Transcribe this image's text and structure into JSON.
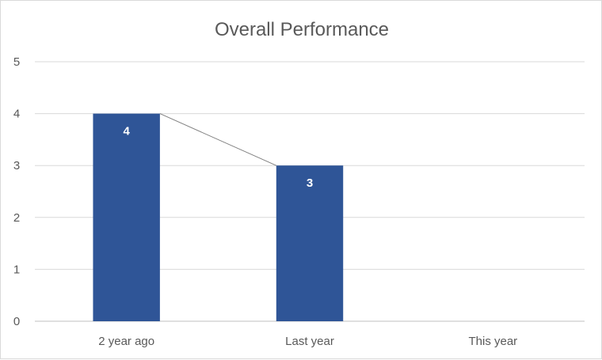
{
  "chart_data": {
    "type": "bar",
    "title": "Overall Performance",
    "categories": [
      "2 year ago",
      "Last year",
      "This year"
    ],
    "values": [
      4,
      3,
      null
    ],
    "data_labels": [
      "4",
      "3",
      ""
    ],
    "xlabel": "",
    "ylabel": "",
    "ylim": [
      0,
      5
    ],
    "yticks": [
      "0",
      "1",
      "2",
      "3",
      "4",
      "5"
    ],
    "grid": true,
    "legend": "none",
    "series_line_connecting_bar_tops": true,
    "colors": {
      "bar": "#2F5597",
      "grid": "#d9d9d9",
      "axis": "#bfbfbf",
      "connector": "#808080",
      "text": "#595959"
    }
  }
}
